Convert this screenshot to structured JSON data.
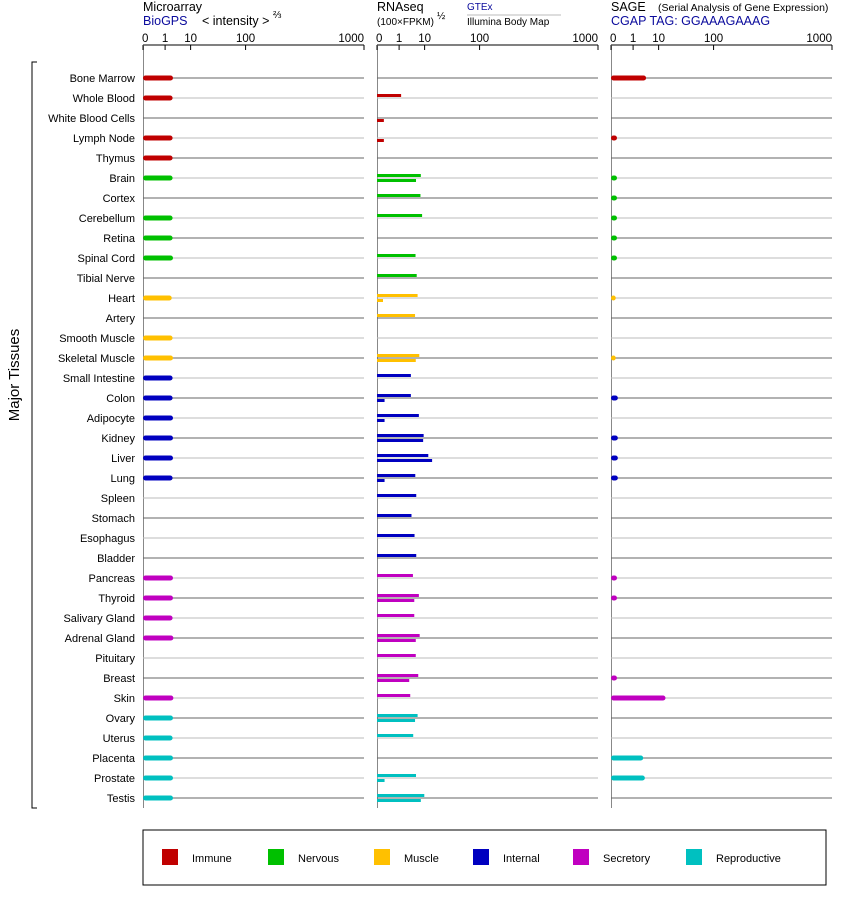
{
  "chart_data": {
    "type": "bar",
    "ylabel": "Major Tissues",
    "panels": [
      {
        "id": "microarray",
        "title": "Microarray",
        "source": "BioGPS",
        "subtitle": "< intensity >",
        "exponent": "⅔",
        "ticks": [
          "0",
          "1",
          "10",
          "100",
          "1000"
        ]
      },
      {
        "id": "rnaseq",
        "title": "RNAseq",
        "subtitle": "(100×FPKM)",
        "exponent": "½",
        "source_top": "GTEx",
        "source_bottom": "Illumina Body Map",
        "ticks": [
          "0",
          "1",
          "10",
          "100",
          "1000"
        ]
      },
      {
        "id": "sage",
        "title": "SAGE",
        "title_note": "(Serial Analysis of Gene Expression)",
        "source": "CGAP TAG: GGAAAGAAAG",
        "ticks": [
          "0",
          "1",
          "10",
          "100",
          "1000"
        ]
      }
    ],
    "categories": [
      "Bone Marrow",
      "Whole Blood",
      "White Blood Cells",
      "Lymph Node",
      "Thymus",
      "Brain",
      "Cortex",
      "Cerebellum",
      "Retina",
      "Spinal Cord",
      "Tibial Nerve",
      "Heart",
      "Artery",
      "Smooth Muscle",
      "Skeletal Muscle",
      "Small Intestine",
      "Colon",
      "Adipocyte",
      "Kidney",
      "Liver",
      "Lung",
      "Spleen",
      "Stomach",
      "Esophagus",
      "Bladder",
      "Pancreas",
      "Thyroid",
      "Salivary Gland",
      "Adrenal Gland",
      "Pituitary",
      "Breast",
      "Skin",
      "Ovary",
      "Uterus",
      "Placenta",
      "Prostate",
      "Testis"
    ],
    "groups": [
      "Immune",
      "Immune",
      "Immune",
      "Immune",
      "Immune",
      "Nervous",
      "Nervous",
      "Nervous",
      "Nervous",
      "Nervous",
      "Nervous",
      "Muscle",
      "Muscle",
      "Muscle",
      "Muscle",
      "Internal",
      "Internal",
      "Internal",
      "Internal",
      "Internal",
      "Internal",
      "Internal",
      "Internal",
      "Internal",
      "Internal",
      "Secretory",
      "Secretory",
      "Secretory",
      "Secretory",
      "Secretory",
      "Secretory",
      "Secretory",
      "Reproductive",
      "Reproductive",
      "Reproductive",
      "Reproductive",
      "Reproductive"
    ],
    "colors": {
      "Immune": "#c00000",
      "Nervous": "#00c000",
      "Muscle": "#ffc000",
      "Internal": "#0000c0",
      "Secretory": "#c000c0",
      "Reproductive": "#00c0c0"
    },
    "microarray": [
      2.5,
      2.4,
      null,
      2.4,
      2.4,
      2.4,
      null,
      2.4,
      2.4,
      2.5,
      null,
      2.2,
      null,
      2.4,
      2.5,
      2.4,
      2.4,
      2.5,
      2.5,
      2.5,
      2.4,
      null,
      null,
      null,
      null,
      2.5,
      2.5,
      2.4,
      2.6,
      null,
      null,
      2.6,
      2.5,
      2.4,
      2.5,
      2.5,
      2.5
    ],
    "rnaseq_gtex": [
      null,
      1.3,
      null,
      null,
      null,
      7.8,
      7.6,
      8.5,
      null,
      5.3,
      5.8,
      6.2,
      5.1,
      null,
      7.0,
      3.6,
      3.6,
      6.8,
      9.4,
      12.5,
      5.2,
      5.6,
      3.8,
      4.9,
      5.6,
      4.3,
      6.8,
      4.8,
      7.2,
      5.4,
      6.5,
      3.4,
      6.2,
      4.4,
      null,
      5.5,
      9.8
    ],
    "rnaseq_ibm": [
      null,
      null,
      0.03,
      0.03,
      null,
      5.5,
      null,
      null,
      null,
      null,
      null,
      0.02,
      null,
      null,
      5.4,
      null,
      0.04,
      0.04,
      9.1,
      15.5,
      0.04,
      null,
      null,
      null,
      null,
      null,
      4.8,
      null,
      5.4,
      null,
      3.1,
      null,
      5.1,
      null,
      null,
      0.04,
      7.8
    ],
    "sage": [
      4.0,
      null,
      null,
      0.02,
      null,
      0.02,
      0.02,
      0.02,
      0.02,
      0.02,
      null,
      0.01,
      null,
      null,
      0.01,
      null,
      0.03,
      null,
      0.03,
      0.03,
      0.03,
      null,
      null,
      null,
      null,
      0.02,
      0.02,
      null,
      null,
      null,
      0.02,
      15.0,
      null,
      null,
      3.1,
      3.6,
      null
    ],
    "legend": [
      "Immune",
      "Nervous",
      "Muscle",
      "Internal",
      "Secretory",
      "Reproductive"
    ]
  }
}
